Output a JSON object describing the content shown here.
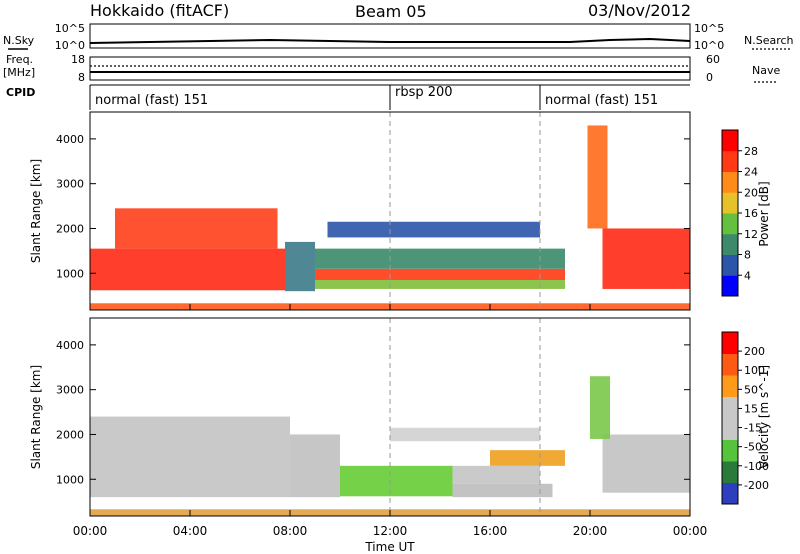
{
  "header": {
    "title": "Hokkaido (fitACF)",
    "beam": "Beam 05",
    "date": "03/Nov/2012"
  },
  "summary": {
    "nsky_label": "N.Sky",
    "nsearch_label": "N.Search",
    "nsky_ticks": [
      "10^5",
      "10^0"
    ],
    "nsky_right_ticks": [
      "10^5",
      "10^0"
    ],
    "freq_label_top": "Freq.",
    "freq_label_bottom": "[MHz]",
    "freq_ticks": [
      "18",
      "8"
    ],
    "nave_label": "Nave",
    "nave_ticks": [
      "60",
      "0"
    ],
    "cpid_label": "CPID",
    "cpid_segments": [
      {
        "label": "normal (fast) 151",
        "start_hour": 0
      },
      {
        "label": "rbsp 200",
        "start_hour": 12
      },
      {
        "label": "normal (fast) 151",
        "start_hour": 18
      }
    ]
  },
  "chart_data": [
    {
      "type": "heatmap",
      "panel": "power",
      "ylabel": "Slant Range [km]",
      "ylim": [
        180,
        4600
      ],
      "yticks": [
        1000,
        2000,
        3000,
        4000
      ],
      "xlim_hours": [
        0,
        24
      ],
      "colorbar_label": "Power [dB]",
      "colorbar_ticks": [
        "4",
        "8",
        "12",
        "16",
        "20",
        "24",
        "28"
      ],
      "colorbar_colors": [
        "#0000ff",
        "#2b55a8",
        "#3d8a6a",
        "#66c040",
        "#e7c12a",
        "#ff8c1a",
        "#ff3a14",
        "#ff0000"
      ],
      "regions": [
        {
          "t0": 0.0,
          "t1": 7.8,
          "r0": 620,
          "r1": 1550,
          "color": "#ff2a14"
        },
        {
          "t0": 1.0,
          "t1": 7.5,
          "r0": 1550,
          "r1": 2450,
          "color": "#ff3f1a"
        },
        {
          "t0": 7.8,
          "t1": 9.0,
          "r0": 600,
          "r1": 1700,
          "color": "#3d7a8a"
        },
        {
          "t0": 9.0,
          "t1": 19.0,
          "r0": 850,
          "r1": 1100,
          "color": "#ff3a14"
        },
        {
          "t0": 9.0,
          "t1": 19.0,
          "r0": 650,
          "r1": 850,
          "color": "#7fbf3a"
        },
        {
          "t0": 9.0,
          "t1": 19.0,
          "r0": 1100,
          "r1": 1550,
          "color": "#3a8a6a"
        },
        {
          "t0": 9.5,
          "t1": 18.0,
          "r0": 1800,
          "r1": 2150,
          "color": "#2b55a8"
        },
        {
          "t0": 20.5,
          "t1": 24.0,
          "r0": 650,
          "r1": 2000,
          "color": "#ff2a14"
        },
        {
          "t0": 19.9,
          "t1": 20.7,
          "r0": 2000,
          "r1": 4300,
          "color": "#ff6a1a"
        },
        {
          "t0": 0.0,
          "t1": 24.0,
          "r0": 180,
          "r1": 330,
          "color": "#ff5a1a"
        }
      ]
    },
    {
      "type": "heatmap",
      "panel": "velocity",
      "ylabel": "Slant Range [km]",
      "xlabel": "Time UT",
      "ylim": [
        180,
        4600
      ],
      "yticks": [
        1000,
        2000,
        3000,
        4000
      ],
      "xlim_hours": [
        0,
        24
      ],
      "xticks": [
        "00:00",
        "04:00",
        "08:00",
        "12:00",
        "16:00",
        "20:00",
        "00:00"
      ],
      "colorbar_label": "Velocity [m s^-1]",
      "colorbar_ticks": [
        "200",
        "100",
        "50",
        "15",
        "-15",
        "-50",
        "-100",
        "-200"
      ],
      "colorbar_colors": [
        "#2b3fbf",
        "#2a7a3a",
        "#55c43a",
        "#c8c8c8",
        "#c8c8c8",
        "#ff9a1a",
        "#ff5a14",
        "#ff0000"
      ],
      "regions": [
        {
          "t0": 0.0,
          "t1": 8.0,
          "r0": 600,
          "r1": 2400,
          "color": "#c3c3c3"
        },
        {
          "t0": 8.0,
          "t1": 10.0,
          "r0": 600,
          "r1": 2000,
          "color": "#c0c0c0"
        },
        {
          "t0": 10.0,
          "t1": 14.5,
          "r0": 620,
          "r1": 1300,
          "color": "#66cc33"
        },
        {
          "t0": 14.5,
          "t1": 18.0,
          "r0": 900,
          "r1": 1300,
          "color": "#c4c4c4"
        },
        {
          "t0": 14.5,
          "t1": 18.5,
          "r0": 600,
          "r1": 900,
          "color": "#bdbdbd"
        },
        {
          "t0": 16.0,
          "t1": 19.0,
          "r0": 1300,
          "r1": 1650,
          "color": "#f0a020"
        },
        {
          "t0": 12.0,
          "t1": 18.0,
          "r0": 1850,
          "r1": 2150,
          "color": "#d0d0d0"
        },
        {
          "t0": 20.5,
          "t1": 24.0,
          "r0": 700,
          "r1": 2000,
          "color": "#c2c2c2"
        },
        {
          "t0": 20.0,
          "t1": 20.8,
          "r0": 1900,
          "r1": 3300,
          "color": "#7ac84a"
        },
        {
          "t0": 0.0,
          "t1": 24.0,
          "r0": 180,
          "r1": 330,
          "color": "#e0a040"
        }
      ]
    }
  ]
}
